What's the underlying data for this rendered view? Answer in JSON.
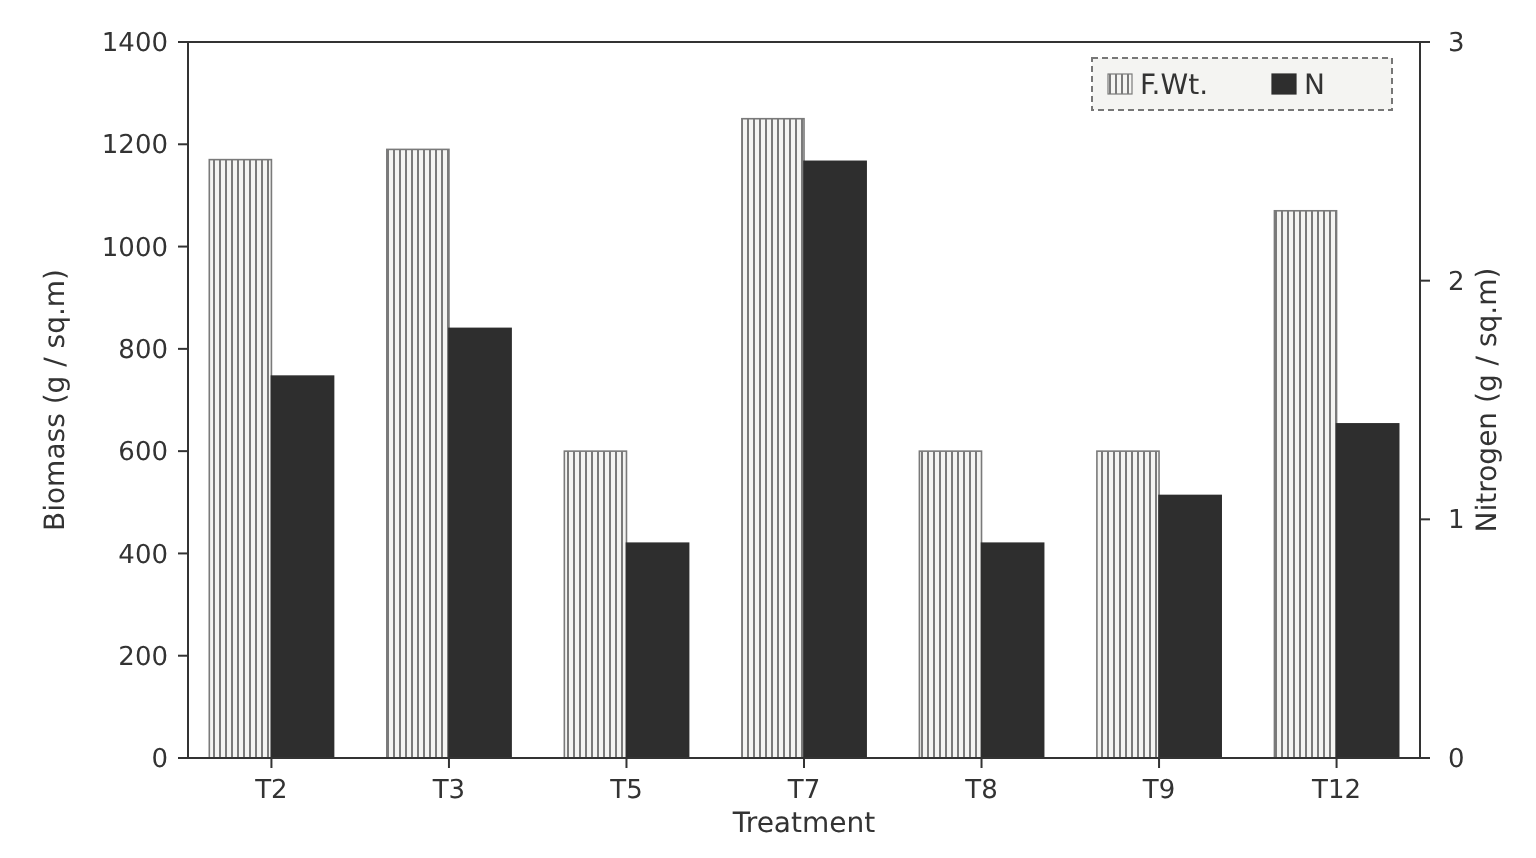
{
  "chart_data": {
    "type": "bar",
    "xlabel": "Treatment",
    "ylabel": "Biomass (g / sq.m)",
    "y2label": "Nitrogen (g / sq.m)",
    "categories": [
      "T2",
      "T3",
      "T5",
      "T7",
      "T8",
      "T9",
      "T12"
    ],
    "series": [
      {
        "name": "F.Wt.",
        "color": "#7a7a7a",
        "values": [
          1170,
          1190,
          600,
          1250,
          600,
          600,
          1070
        ]
      },
      {
        "name": "N",
        "color": "#2e2e2e",
        "axis": "y2",
        "values": [
          1.6,
          1.8,
          0.9,
          2.5,
          0.9,
          1.1,
          1.4
        ]
      }
    ],
    "ylim": [
      0,
      1400
    ],
    "yticks": [
      0,
      200,
      400,
      600,
      800,
      1000,
      1200,
      1400
    ],
    "y2lim": [
      0,
      3
    ],
    "y2ticks": [
      0,
      1,
      2,
      3
    ],
    "legend": "top right",
    "grid": false
  }
}
